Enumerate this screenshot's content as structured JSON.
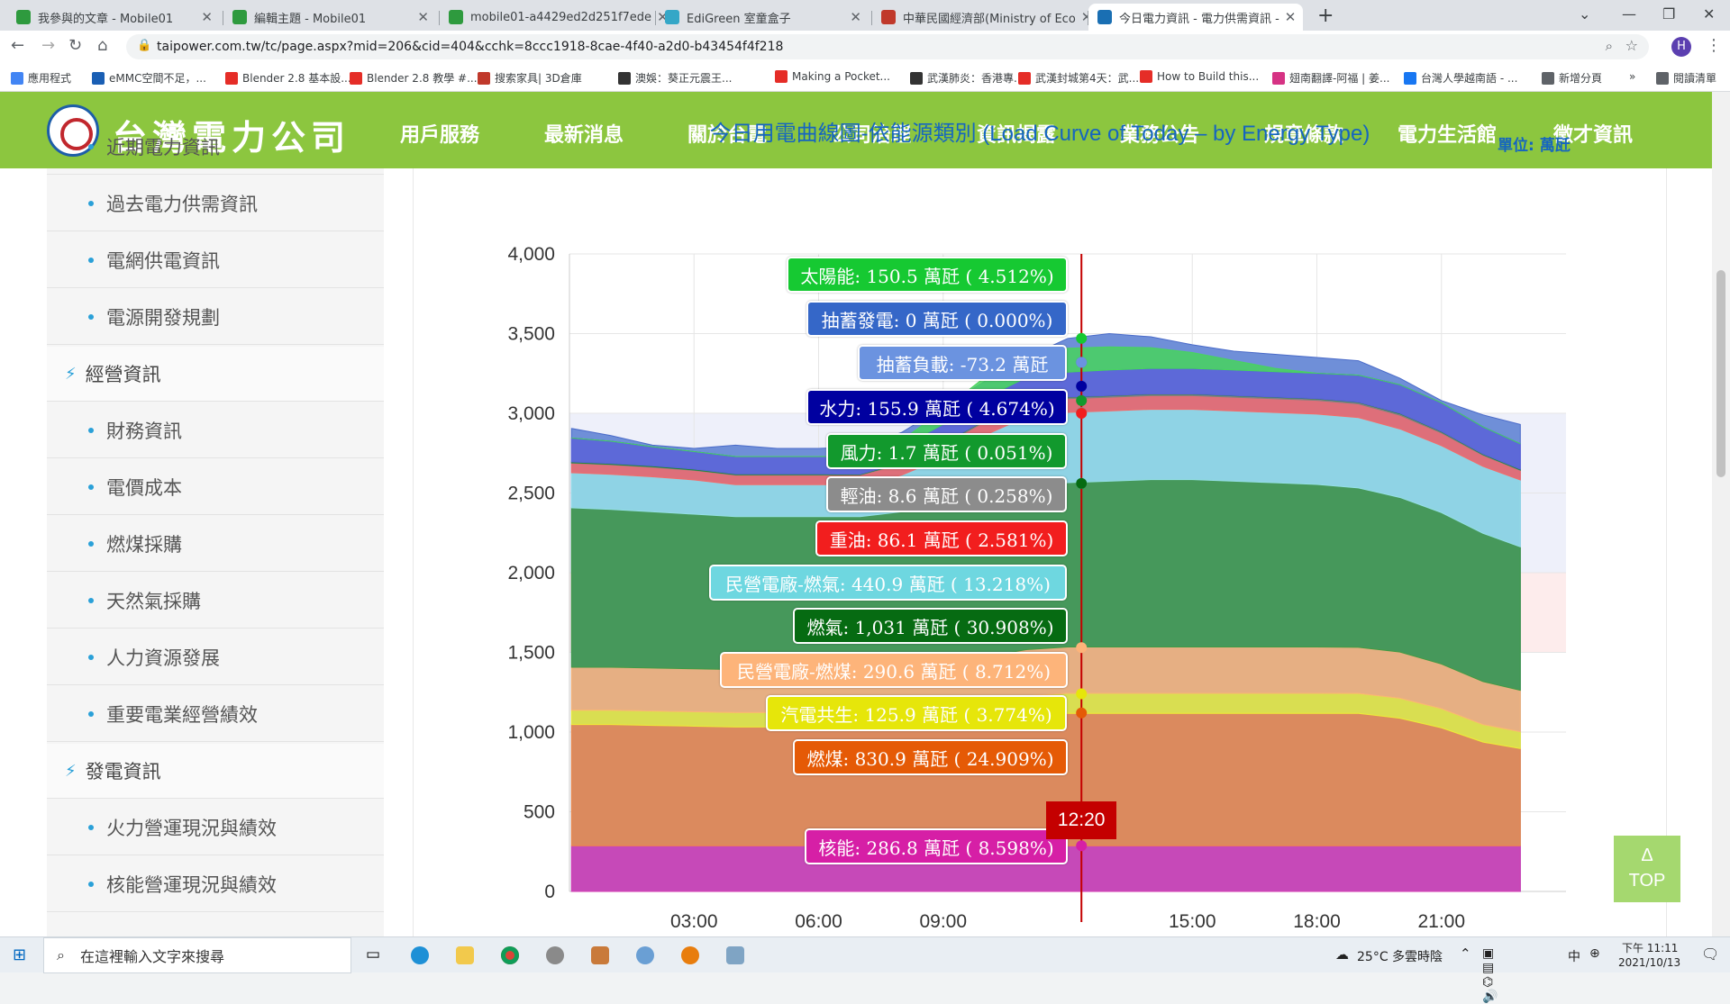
{
  "browser": {
    "tabs": [
      {
        "title": "我參與的文章 - Mobile01",
        "color": "#2e9a3e"
      },
      {
        "title": "編輯主題 - Mobile01",
        "color": "#2e9a3e"
      },
      {
        "title": "mobile01-a4429ed2d251f7ede",
        "color": "#2e9a3e"
      },
      {
        "title": "EdiGreen 室童盒子",
        "color": "#35a7c7"
      },
      {
        "title": "中華民國經濟部(Ministry of Eco",
        "color": "#c0392b"
      },
      {
        "title": "今日電力資訊 - 電力供需資訊 - ",
        "color": "#1a6fb3"
      }
    ],
    "new_tab": "+",
    "url": "taipower.com.tw/tc/page.aspx?mid=206&cid=404&cchk=8ccc1918-8cae-4f40-a2d0-b43454f4f218",
    "profile": "H",
    "bookmarks": [
      "應用程式",
      "eMMC空間不足，...",
      "Blender 2.8 基本設...",
      "Blender 2.8 教學 #...",
      "搜索家具| 3D倉庫",
      "澳娛：葵正元震王...",
      "Making a Pocket...",
      "武漢肺炎：香港專...",
      "武漢封城第4天：武...",
      "How to Build this...",
      "翅南翻譯-阿福 | 姜...",
      "台灣人學越南語 - ...",
      "新增分頁",
      "»",
      "閱讀清單"
    ]
  },
  "site": {
    "logo_text": "台灣電力公司",
    "nav": [
      "用戶服務",
      "最新消息",
      "關於台電",
      "公司治理",
      "資訊揭露",
      "業務公告",
      "規章條款",
      "電力生活館",
      "徵才資訊"
    ],
    "active_nav": "資訊揭露",
    "sidebar": [
      {
        "label": "近期電力資訊",
        "kind": "sub"
      },
      {
        "label": "過去電力供需資訊",
        "kind": "sub"
      },
      {
        "label": "電網供電資訊",
        "kind": "sub"
      },
      {
        "label": "電源開發規劃",
        "kind": "sub"
      },
      {
        "label": "經營資訊",
        "kind": "sec"
      },
      {
        "label": "財務資訊",
        "kind": "sub"
      },
      {
        "label": "電價成本",
        "kind": "sub"
      },
      {
        "label": "燃煤採購",
        "kind": "sub"
      },
      {
        "label": "天然氣採購",
        "kind": "sub"
      },
      {
        "label": "人力資源發展",
        "kind": "sub"
      },
      {
        "label": "重要電業經營績效",
        "kind": "sub"
      },
      {
        "label": "發電資訊",
        "kind": "sec"
      },
      {
        "label": "火力營運現況與績效",
        "kind": "sub"
      },
      {
        "label": "核能營運現況與績效",
        "kind": "sub"
      }
    ],
    "top_button": {
      "arrow": "Δ",
      "label": "TOP"
    }
  },
  "chart_data": {
    "type": "area",
    "title": "今日用電曲線圖-依能源類別 (Load Curve of Today – by Energy Type)",
    "unit": "單位: 萬瓩",
    "ylim": [
      0,
      4000
    ],
    "yticks": [
      "0",
      "500",
      "1,000",
      "1,500",
      "2,000",
      "2,500",
      "3,000",
      "3,500",
      "4,000"
    ],
    "xticks": [
      "03:00",
      "06:00",
      "09:00",
      "15:00",
      "18:00",
      "21:00"
    ],
    "xrange_hours": [
      0,
      24
    ],
    "now_label": "12:20",
    "now_hours": 12.33,
    "reserve_bands": [
      {
        "from": 1500,
        "to": 2000,
        "color": "#fdecec"
      },
      {
        "from": 2000,
        "to": 3000,
        "color": "#eef0fa"
      }
    ],
    "hours": [
      0,
      1,
      2,
      3,
      4,
      5,
      6,
      7,
      8,
      9,
      10,
      11,
      12,
      13,
      14,
      15,
      16,
      17,
      18,
      19,
      20,
      21,
      22,
      23
    ],
    "series": [
      {
        "name": "核能",
        "color": "#d63db3",
        "values": [
          287,
          287,
          287,
          287,
          287,
          287,
          287,
          287,
          287,
          287,
          287,
          287,
          287,
          287,
          287,
          287,
          287,
          287,
          287,
          287,
          287,
          287,
          287,
          287
        ]
      },
      {
        "name": "燃煤",
        "color": "#ee8a49",
        "values": [
          760,
          760,
          755,
          750,
          745,
          745,
          745,
          745,
          745,
          755,
          790,
          820,
          830,
          830,
          830,
          830,
          830,
          830,
          830,
          830,
          800,
          740,
          650,
          610
        ]
      },
      {
        "name": "汽電共生",
        "color": "#ecec3a",
        "values": [
          90,
          90,
          90,
          90,
          90,
          90,
          90,
          90,
          95,
          100,
          110,
          120,
          126,
          126,
          126,
          126,
          126,
          126,
          126,
          125,
          125,
          120,
          110,
          105
        ]
      },
      {
        "name": "民營電廠-燃煤",
        "color": "#fbb574",
        "values": [
          270,
          270,
          270,
          270,
          270,
          270,
          270,
          270,
          275,
          280,
          285,
          290,
          291,
          291,
          291,
          291,
          291,
          291,
          291,
          290,
          290,
          280,
          270,
          260
        ]
      },
      {
        "name": "燃氣",
        "color": "#409a45",
        "values": [
          1000,
          990,
          980,
          970,
          960,
          960,
          960,
          960,
          980,
          1000,
          1010,
          1030,
          1031,
          1040,
          1050,
          1050,
          1040,
          1030,
          1020,
          1000,
          970,
          950,
          930,
          900
        ]
      },
      {
        "name": "民營電廠-燃氣",
        "color": "#95dfe8",
        "values": [
          220,
          220,
          220,
          215,
          200,
          200,
          200,
          200,
          230,
          300,
          380,
          430,
          441,
          441,
          441,
          441,
          441,
          441,
          441,
          441,
          430,
          420,
          420,
          420
        ]
      },
      {
        "name": "重油",
        "color": "#f26a6a",
        "values": [
          60,
          60,
          60,
          60,
          60,
          60,
          60,
          60,
          70,
          80,
          84,
          86,
          86,
          86,
          86,
          86,
          86,
          86,
          86,
          86,
          86,
          80,
          70,
          60
        ]
      },
      {
        "name": "輕油",
        "color": "#808080",
        "values": [
          3,
          3,
          3,
          3,
          3,
          3,
          3,
          3,
          5,
          7,
          8,
          8.6,
          8.6,
          8.6,
          8.6,
          8.6,
          8.6,
          8.6,
          8.6,
          8.6,
          8.6,
          6,
          4,
          3
        ]
      },
      {
        "name": "風力",
        "color": "#1b8a2c",
        "values": [
          5,
          5,
          5,
          5,
          4,
          4,
          4,
          3,
          3,
          2,
          2,
          2,
          1.7,
          2,
          2,
          2,
          2,
          2,
          2,
          2,
          3,
          3,
          4,
          4
        ]
      },
      {
        "name": "水力",
        "color": "#5b63d8",
        "values": [
          150,
          140,
          120,
          110,
          110,
          110,
          110,
          110,
          100,
          120,
          140,
          150,
          156,
          160,
          160,
          160,
          160,
          160,
          160,
          170,
          180,
          180,
          170,
          160
        ]
      },
      {
        "name": "抽蓄負載",
        "color": "#5a7fd0",
        "values": [
          0,
          0,
          0,
          0,
          0,
          0,
          0,
          0,
          0,
          0,
          0,
          0,
          0,
          0,
          0,
          0,
          0,
          0,
          0,
          0,
          0,
          0,
          0,
          0
        ]
      },
      {
        "name": "抽蓄發電",
        "color": "#2f5ec9",
        "values": [
          0,
          0,
          0,
          0,
          0,
          0,
          0,
          0,
          0,
          0,
          0,
          0,
          0,
          0,
          0,
          0,
          0,
          0,
          0,
          0,
          0,
          0,
          0,
          0
        ]
      },
      {
        "name": "太陽能",
        "color": "#48d45e",
        "values": [
          0,
          0,
          0,
          0,
          0,
          0,
          0,
          5,
          40,
          90,
          130,
          148,
          150,
          145,
          130,
          100,
          60,
          20,
          0,
          0,
          0,
          0,
          0,
          0
        ]
      }
    ],
    "total_envelope": {
      "color": "#6f8fd8",
      "values": [
        2905,
        2860,
        2800,
        2780,
        2800,
        2780,
        2780,
        2790,
        2880,
        3040,
        3200,
        3350,
        3470,
        3500,
        3480,
        3430,
        3390,
        3370,
        3350,
        3330,
        3220,
        3080,
        2990,
        2930
      ]
    },
    "tooltips": [
      {
        "text": "太陽能: 150.5 萬瓩 ( 4.512%)",
        "color": "#16c932",
        "value": 3470
      },
      {
        "text": "抽蓄發電: 0 萬瓩 ( 0.000%)",
        "color": "#3567c8",
        "value": 3320
      },
      {
        "text": "抽蓄負載: -73.2 萬瓩",
        "color": "#6b93e0",
        "value": 3320
      },
      {
        "text": "水力: 155.9 萬瓩 ( 4.674%)",
        "color": "#0000a0",
        "value": 3170
      },
      {
        "text": "風力: 1.7 萬瓩 ( 0.051%)",
        "color": "#12992d",
        "value": 3080
      },
      {
        "text": "輕油: 8.6 萬瓩 ( 0.258%)",
        "color": "#8c8c8c",
        "value": 3005
      },
      {
        "text": "重油: 86.1 萬瓩 ( 2.581%)",
        "color": "#f21e1e",
        "value": 3000
      },
      {
        "text": "民營電廠-燃氣: 440.9 萬瓩 ( 13.218%)",
        "color": "#6ed7e0",
        "value": 2560
      },
      {
        "text": "燃氣: 1,031 萬瓩 ( 30.908%)",
        "color": "#066b12",
        "value": 2560
      },
      {
        "text": "民營電廠-燃煤: 290.6 萬瓩 ( 8.712%)",
        "color": "#fdb47a",
        "value": 1530
      },
      {
        "text": "汽電共生: 125.9 萬瓩 ( 3.774%)",
        "color": "#e6e60a",
        "value": 1240
      },
      {
        "text": "燃煤: 830.9 萬瓩 ( 24.909%)",
        "color": "#e55a06",
        "value": 1120
      },
      {
        "text": "核能: 286.8 萬瓩 ( 8.598%)",
        "color": "#d61fa6",
        "value": 287
      }
    ]
  },
  "taskbar": {
    "search_placeholder": "在這裡輸入文字來搜尋",
    "weather": "25°C 多雲時陰",
    "ime": "中",
    "time": "下午 11:11",
    "date": "2021/10/13"
  }
}
